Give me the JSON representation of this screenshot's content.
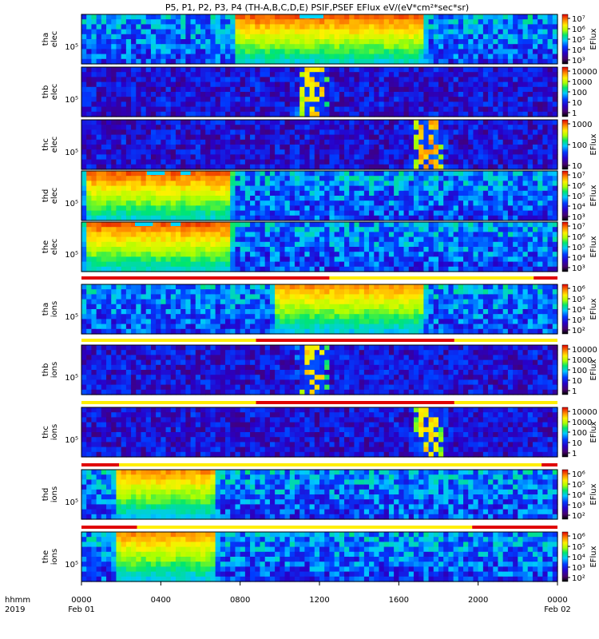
{
  "chart_data": {
    "type": "heatmap",
    "title": "P5, P1, P2, P3, P4 (TH-A,B,C,D,E) PSIF,PSEF EFlux eV/(eV*cm²*sec*sr)",
    "x_axis": {
      "row_labels": [
        "hhmm",
        "2019"
      ],
      "ticks": [
        "0000",
        "0400",
        "0800",
        "1200",
        "1600",
        "2000",
        "0000"
      ],
      "tick_hours": [
        0,
        4,
        8,
        12,
        16,
        20,
        24
      ],
      "date_labels": [
        {
          "hour": 0,
          "text": "Feb 01"
        },
        {
          "hour": 24,
          "text": "Feb 02"
        }
      ],
      "range_hours": [
        0,
        24
      ]
    },
    "colormap": "rainbow",
    "panels": [
      {
        "id": "tha_elec",
        "probe": "tha",
        "species": "elec",
        "ytick": "10⁵",
        "cbar_label": "EFlux",
        "cbar_ticks": [
          "10⁷",
          "10⁶",
          "10⁵",
          "10⁴",
          "10³"
        ],
        "style": "smooth",
        "features": [
          {
            "start": 7.5,
            "end": 17.5,
            "level": 0.9
          },
          {
            "start": 13.7,
            "end": 13.9,
            "level": 0.5
          }
        ],
        "saturation_hours": [
          [
            11.0,
            12.2
          ]
        ]
      },
      {
        "id": "thb_elec",
        "probe": "thb",
        "species": "elec",
        "ytick": "10⁵",
        "cbar_label": "",
        "cbar_ticks": [
          "10000",
          "1000",
          "100",
          "10",
          "1"
        ],
        "style": "noisy",
        "features": [
          {
            "start": 10.8,
            "end": 12.6,
            "level": 0.75
          }
        ],
        "saturation_hours": []
      },
      {
        "id": "thc_elec",
        "probe": "thc",
        "species": "elec",
        "ytick": "10⁵",
        "cbar_label": "EFlux",
        "cbar_ticks": [
          "1000",
          "100",
          "10"
        ],
        "style": "noisy",
        "features": [
          {
            "start": 16.6,
            "end": 18.4,
            "level": 0.8
          }
        ],
        "saturation_hours": []
      },
      {
        "id": "thd_elec",
        "probe": "thd",
        "species": "elec",
        "ytick": "10⁵",
        "cbar_label": "EFlux",
        "cbar_ticks": [
          "10⁷",
          "10⁶",
          "10⁵",
          "10⁴",
          "10³"
        ],
        "style": "smooth",
        "features": [
          {
            "start": 0,
            "end": 7.8,
            "level": 0.9
          },
          {
            "start": 4.3,
            "end": 4.6,
            "level": 0.55
          }
        ],
        "saturation_hours": [
          [
            3.3,
            4.2
          ],
          [
            5.0,
            5.5
          ]
        ]
      },
      {
        "id": "the_elec",
        "probe": "the",
        "species": "elec",
        "ytick": "10⁵",
        "cbar_label": "EFlux",
        "cbar_ticks": [
          "10⁷",
          "10⁶",
          "10⁵",
          "10⁴",
          "10³"
        ],
        "style": "smooth",
        "features": [
          {
            "start": 0,
            "end": 7.8,
            "level": 0.9
          },
          {
            "start": 4.3,
            "end": 4.6,
            "level": 0.55
          }
        ],
        "saturation_hours": [
          [
            2.7,
            3.6
          ],
          [
            4.5,
            5.0
          ]
        ]
      },
      {
        "id": "tha_ions",
        "probe": "tha",
        "species": "ions",
        "ytick": "10⁵",
        "cbar_label": "EFlux",
        "cbar_ticks": [
          "10⁶",
          "10⁵",
          "10⁴",
          "10³",
          "10²"
        ],
        "style": "smooth",
        "features": [
          {
            "start": 9.5,
            "end": 17.5,
            "level": 0.85
          },
          {
            "start": 13.7,
            "end": 13.9,
            "level": 0.5
          }
        ],
        "saturation_hours": []
      },
      {
        "id": "thb_ions",
        "probe": "thb",
        "species": "ions",
        "ytick": "10⁵",
        "cbar_label": "EFlux",
        "cbar_ticks": [
          "10000",
          "1000",
          "100",
          "10",
          "1"
        ],
        "style": "noisy",
        "features": [
          {
            "start": 10.8,
            "end": 12.6,
            "level": 0.75
          },
          {
            "start": 12.6,
            "end": 19.0,
            "level": 0.25
          }
        ],
        "saturation_hours": []
      },
      {
        "id": "thc_ions",
        "probe": "thc",
        "species": "ions",
        "ytick": "10⁵",
        "cbar_label": "EFlux",
        "cbar_ticks": [
          "10000",
          "1000",
          "100",
          "10",
          "1"
        ],
        "style": "noisy",
        "features": [
          {
            "start": 16.6,
            "end": 18.4,
            "level": 0.75
          },
          {
            "start": 18.4,
            "end": 24,
            "level": 0.2
          }
        ],
        "saturation_hours": []
      },
      {
        "id": "thd_ions",
        "probe": "thd",
        "species": "ions",
        "ytick": "10⁵",
        "cbar_label": "EFlux",
        "cbar_ticks": [
          "10⁶",
          "10⁵",
          "10⁴",
          "10³",
          "10²"
        ],
        "style": "smooth",
        "features": [
          {
            "start": 1.5,
            "end": 7.0,
            "level": 0.85
          },
          {
            "start": 4.3,
            "end": 4.6,
            "level": 0.5
          }
        ],
        "saturation_hours": []
      },
      {
        "id": "the_ions",
        "probe": "the",
        "species": "ions",
        "ytick": "10⁵",
        "cbar_label": "EFlux",
        "cbar_ticks": [
          "10⁶",
          "10⁵",
          "10⁴",
          "10³",
          "10²"
        ],
        "style": "smooth",
        "features": [
          {
            "start": 1.5,
            "end": 7.0,
            "level": 0.85
          },
          {
            "start": 4.3,
            "end": 4.6,
            "level": 0.5
          }
        ],
        "saturation_hours": []
      }
    ],
    "region_bars": [
      {
        "after_panel": "the_elec",
        "segments": [
          {
            "start": 0,
            "end": 12.5,
            "color": "red"
          },
          {
            "start": 12.5,
            "end": 22.8,
            "color": "yellow"
          },
          {
            "start": 22.8,
            "end": 24,
            "color": "red"
          }
        ]
      },
      {
        "after_panel": "tha_ions",
        "segments": [
          {
            "start": 0,
            "end": 8.8,
            "color": "yellow"
          },
          {
            "start": 8.8,
            "end": 18.8,
            "color": "red"
          },
          {
            "start": 18.8,
            "end": 24,
            "color": "yellow"
          }
        ]
      },
      {
        "after_panel": "thb_ions",
        "segments": [
          {
            "start": 0,
            "end": 8.8,
            "color": "yellow"
          },
          {
            "start": 8.8,
            "end": 18.8,
            "color": "red"
          },
          {
            "start": 18.8,
            "end": 24,
            "color": "yellow"
          }
        ]
      },
      {
        "after_panel": "thc_ions",
        "segments": [
          {
            "start": 0,
            "end": 1.9,
            "color": "red"
          },
          {
            "start": 1.9,
            "end": 23.2,
            "color": "yellow"
          },
          {
            "start": 23.2,
            "end": 24,
            "color": "red"
          }
        ]
      },
      {
        "after_panel": "thd_ions",
        "segments": [
          {
            "start": 0,
            "end": 2.8,
            "color": "red"
          },
          {
            "start": 2.8,
            "end": 19.7,
            "color": "yellow"
          },
          {
            "start": 19.7,
            "end": 24,
            "color": "red"
          }
        ]
      }
    ]
  }
}
